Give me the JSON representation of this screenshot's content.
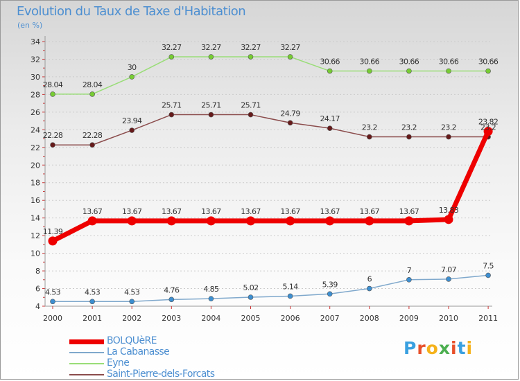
{
  "title": "Evolution du Taux de Taxe d'Habitation",
  "subtitle": "(en %)",
  "logo": {
    "text": "Proxiti",
    "letters": [
      "P",
      "r",
      "o",
      "x",
      "i",
      "t",
      "i"
    ],
    "colors": [
      "#3aa0e0",
      "#e8502a",
      "#f5b21b",
      "#4caf50",
      "#e8502a",
      "#3aa0e0",
      "#f5b21b"
    ]
  },
  "chart_data": {
    "type": "line",
    "title": "Evolution du Taux de Taxe d'Habitation",
    "ylabel": "(en %)",
    "xlabel": "",
    "x": [
      "2000",
      "2001",
      "2002",
      "2003",
      "2004",
      "2005",
      "2006",
      "2007",
      "2008",
      "2009",
      "2010",
      "2011"
    ],
    "ylim": [
      4,
      34
    ],
    "yticks": [
      "4",
      "6",
      "8",
      "10",
      "12",
      "14",
      "16",
      "18",
      "20",
      "22",
      "24",
      "26",
      "28",
      "30",
      "32",
      "34"
    ],
    "legend_position": "bottom-left",
    "series": [
      {
        "name": "BOLQUèRE",
        "color": "#ee0000",
        "marker_color": "#ee0000",
        "thick": true,
        "values": [
          11.39,
          13.67,
          13.67,
          13.67,
          13.67,
          13.67,
          13.67,
          13.67,
          13.67,
          13.67,
          13.83,
          23.82
        ],
        "labels": [
          "11.39",
          "13.67",
          "13.67",
          "13.67",
          "13.67",
          "13.67",
          "13.67",
          "13.67",
          "13.67",
          "13.67",
          "13.83",
          "23.82"
        ]
      },
      {
        "name": "La Cabanasse",
        "color": "#7fa8cc",
        "marker_color": "#3d8fd1",
        "thick": false,
        "values": [
          4.53,
          4.53,
          4.53,
          4.76,
          4.85,
          5.02,
          5.14,
          5.39,
          6,
          7,
          7.07,
          7.5
        ],
        "labels": [
          "4.53",
          "4.53",
          "4.53",
          "4.76",
          "4.85",
          "5.02",
          "5.14",
          "5.39",
          "6",
          "7",
          "7.07",
          "7.5"
        ]
      },
      {
        "name": "Eyne",
        "color": "#99dd77",
        "marker_color": "#77cc33",
        "thick": false,
        "values": [
          28.04,
          28.04,
          30,
          32.27,
          32.27,
          32.27,
          32.27,
          30.66,
          30.66,
          30.66,
          30.66,
          30.66
        ],
        "labels": [
          "28.04",
          "28.04",
          "30",
          "32.27",
          "32.27",
          "32.27",
          "32.27",
          "30.66",
          "30.66",
          "30.66",
          "30.66",
          "30.66"
        ]
      },
      {
        "name": "Saint-Pierre-dels-Forcats",
        "color": "#8b4c4c",
        "marker_color": "#661a1a",
        "thick": false,
        "values": [
          22.28,
          22.28,
          23.94,
          25.71,
          25.71,
          25.71,
          24.79,
          24.17,
          23.2,
          23.2,
          23.2,
          23.2
        ],
        "labels": [
          "22.28",
          "22.28",
          "23.94",
          "25.71",
          "25.71",
          "25.71",
          "24.79",
          "24.17",
          "23.2",
          "23.2",
          "23.2",
          "23.2"
        ]
      }
    ]
  }
}
